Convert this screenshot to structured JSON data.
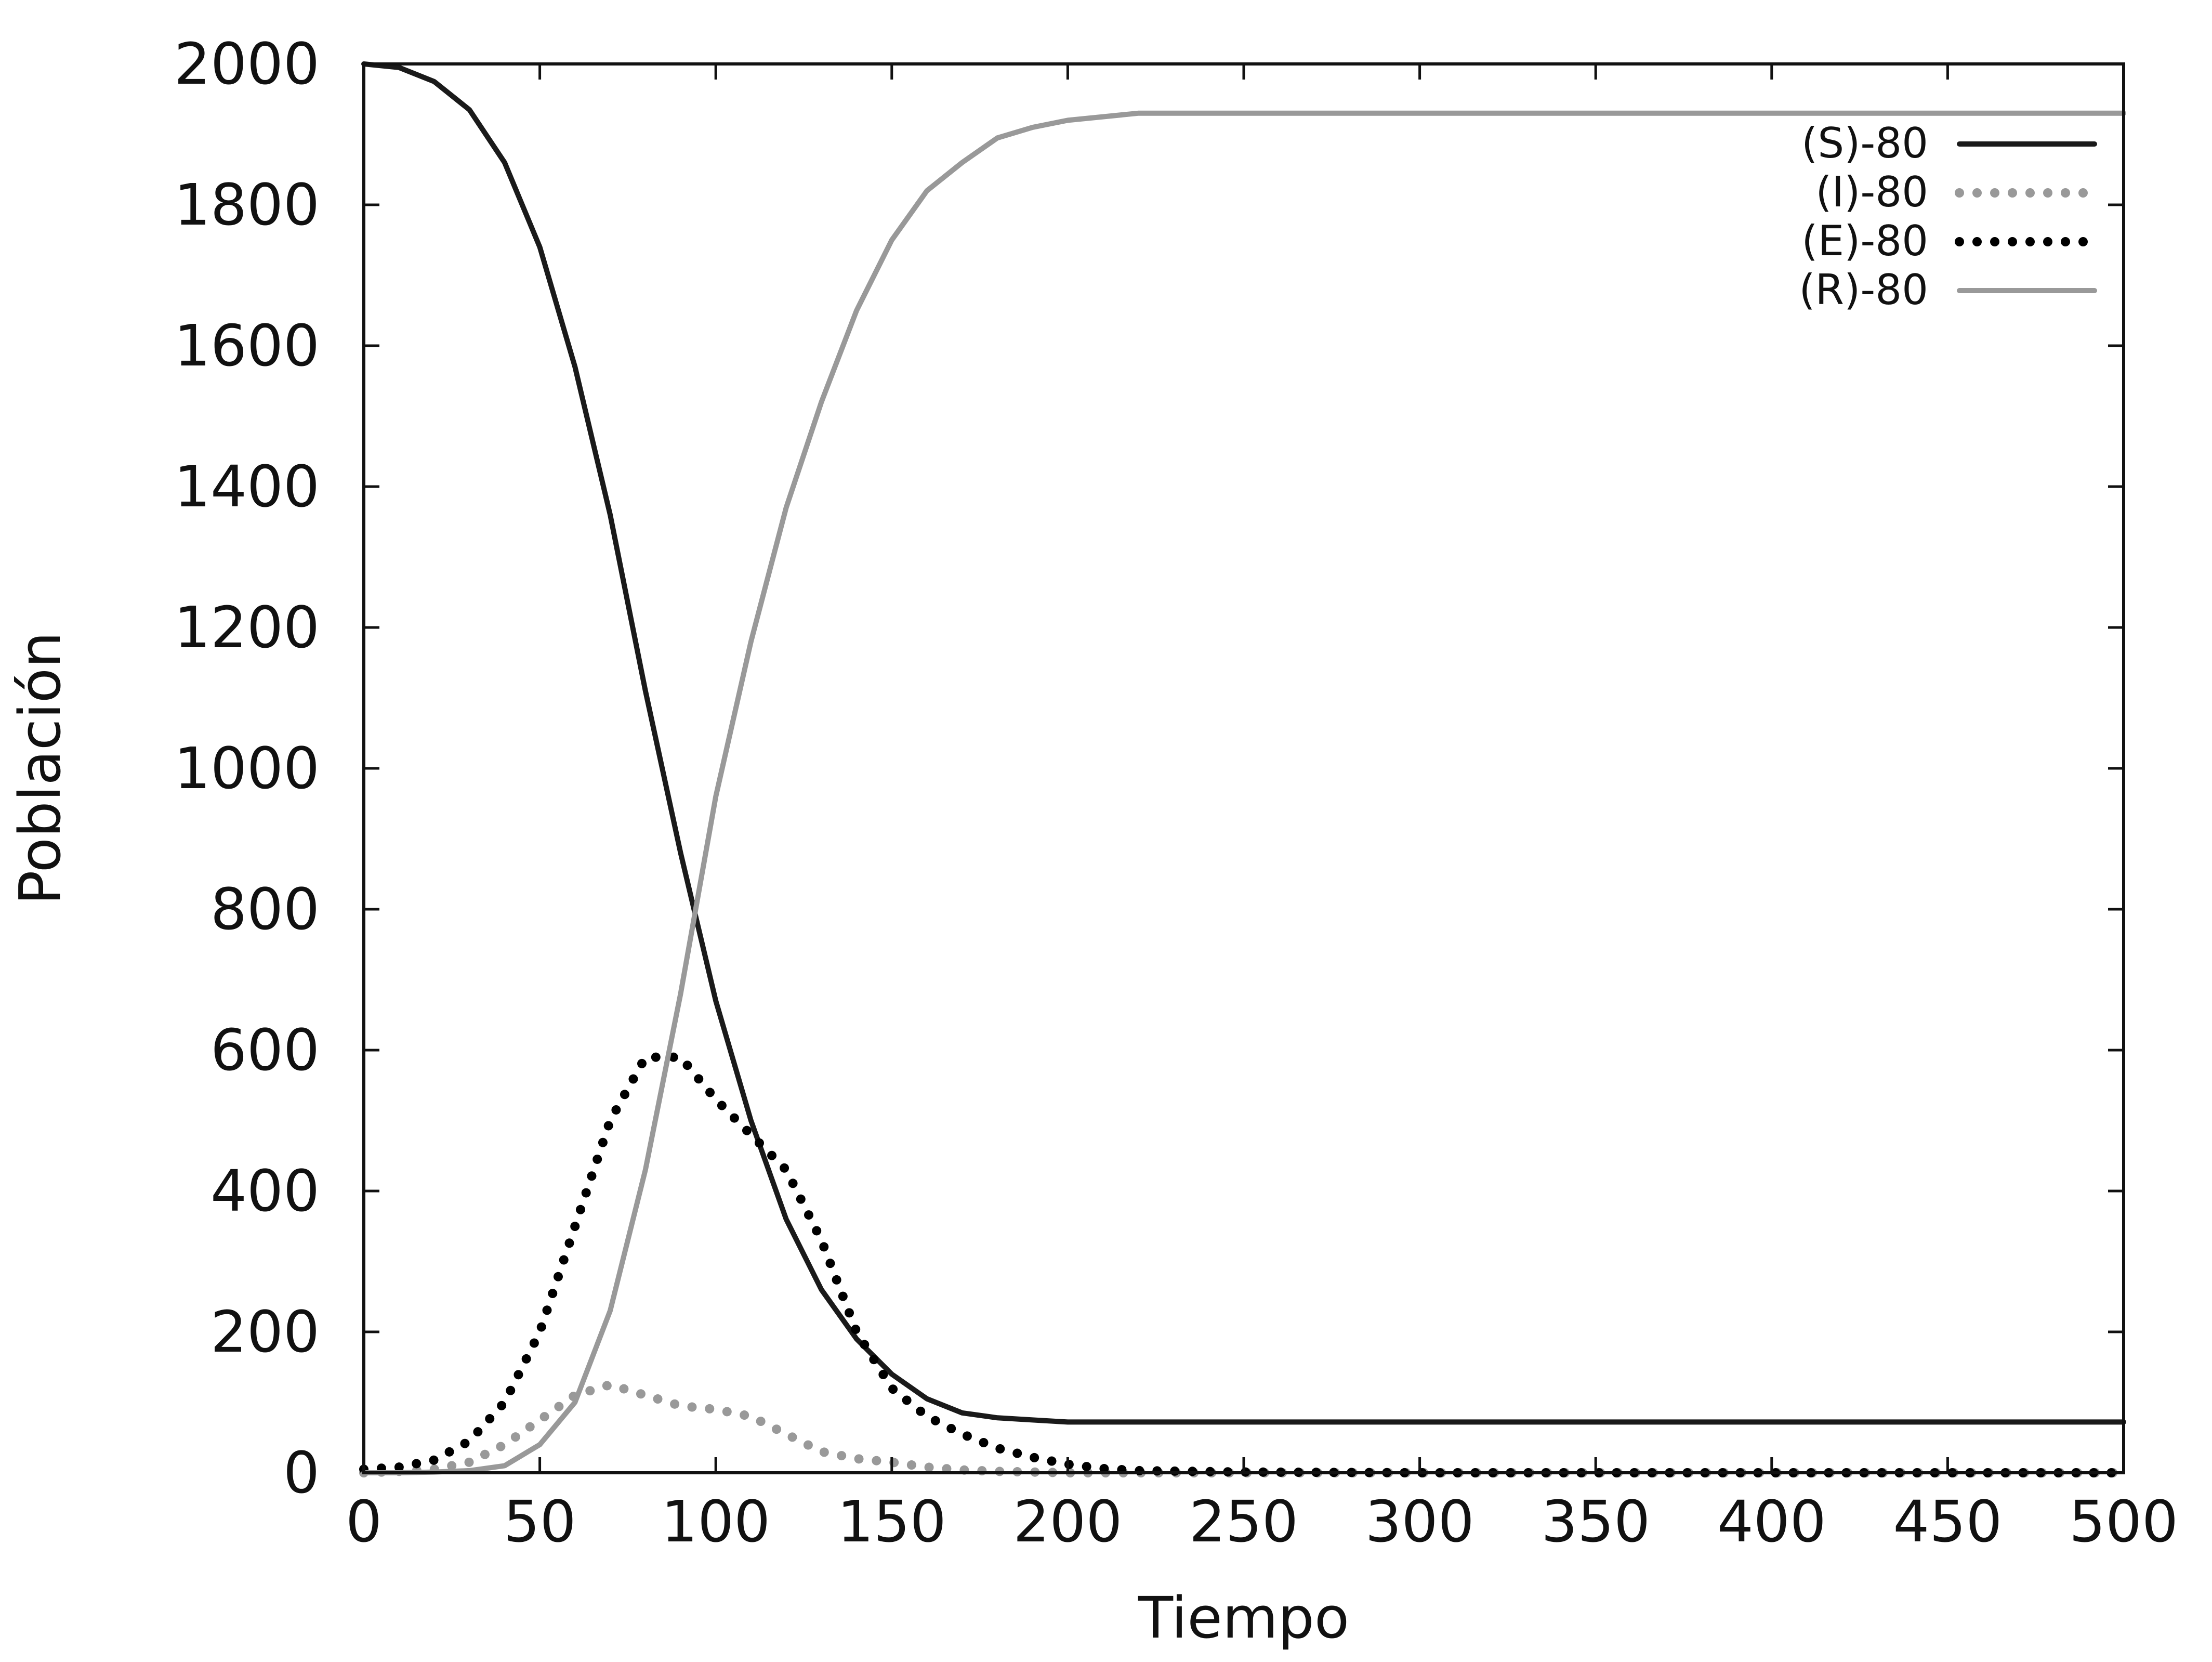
{
  "chart_data": {
    "type": "line",
    "title": "",
    "xlabel": "Tiempo",
    "ylabel": "Población",
    "xlim": [
      0,
      500
    ],
    "ylim": [
      0,
      2000
    ],
    "xticks": [
      "0",
      "50",
      "100",
      "150",
      "200",
      "250",
      "300",
      "350",
      "400",
      "450",
      "500"
    ],
    "yticks": [
      "0",
      "200",
      "400",
      "600",
      "800",
      "1000",
      "1200",
      "1400",
      "1600",
      "1800",
      "2000"
    ],
    "grid": false,
    "legend_position": "top-right",
    "series": [
      {
        "name": "(S)-80",
        "color": "#1a1a1a",
        "style": "solid",
        "x": [
          0,
          10,
          20,
          30,
          40,
          50,
          60,
          70,
          80,
          90,
          100,
          110,
          120,
          130,
          140,
          150,
          160,
          170,
          180,
          190,
          200,
          250,
          300,
          350,
          400,
          450,
          500
        ],
        "y": [
          2000,
          1995,
          1975,
          1935,
          1860,
          1740,
          1570,
          1360,
          1110,
          880,
          670,
          500,
          360,
          260,
          190,
          140,
          105,
          85,
          78,
          75,
          72,
          72,
          72,
          72,
          72,
          72,
          72
        ]
      },
      {
        "name": "(I)-80",
        "color": "#999999",
        "style": "dotted",
        "x": [
          0,
          10,
          20,
          30,
          40,
          50,
          60,
          70,
          80,
          90,
          100,
          110,
          120,
          130,
          140,
          150,
          160,
          170,
          180,
          190,
          200,
          250,
          300,
          350,
          400,
          450,
          500
        ],
        "y": [
          0,
          2,
          5,
          15,
          40,
          75,
          110,
          125,
          110,
          95,
          90,
          80,
          55,
          30,
          20,
          15,
          8,
          4,
          2,
          1,
          0,
          0,
          0,
          0,
          0,
          0,
          0
        ]
      },
      {
        "name": "(E)-80",
        "color": "#000000",
        "style": "dotted",
        "x": [
          0,
          10,
          20,
          30,
          40,
          50,
          60,
          70,
          80,
          90,
          100,
          110,
          120,
          130,
          140,
          150,
          160,
          170,
          180,
          190,
          200,
          210,
          220,
          250,
          300,
          350,
          400,
          450,
          500
        ],
        "y": [
          5,
          8,
          18,
          45,
          100,
          200,
          350,
          500,
          590,
          590,
          530,
          480,
          430,
          330,
          200,
          120,
          80,
          55,
          35,
          22,
          12,
          6,
          3,
          1,
          0,
          0,
          0,
          0,
          0
        ]
      },
      {
        "name": "(R)-80",
        "color": "#999999",
        "style": "solid",
        "x": [
          0,
          10,
          20,
          30,
          40,
          50,
          60,
          70,
          80,
          90,
          100,
          110,
          120,
          130,
          140,
          150,
          160,
          170,
          180,
          190,
          200,
          210,
          220,
          250,
          300,
          350,
          400,
          450,
          500
        ],
        "y": [
          0,
          0,
          1,
          3,
          10,
          40,
          100,
          230,
          430,
          680,
          960,
          1180,
          1370,
          1520,
          1650,
          1750,
          1820,
          1860,
          1895,
          1910,
          1920,
          1925,
          1930,
          1930,
          1930,
          1930,
          1930,
          1930,
          1930
        ]
      }
    ]
  }
}
